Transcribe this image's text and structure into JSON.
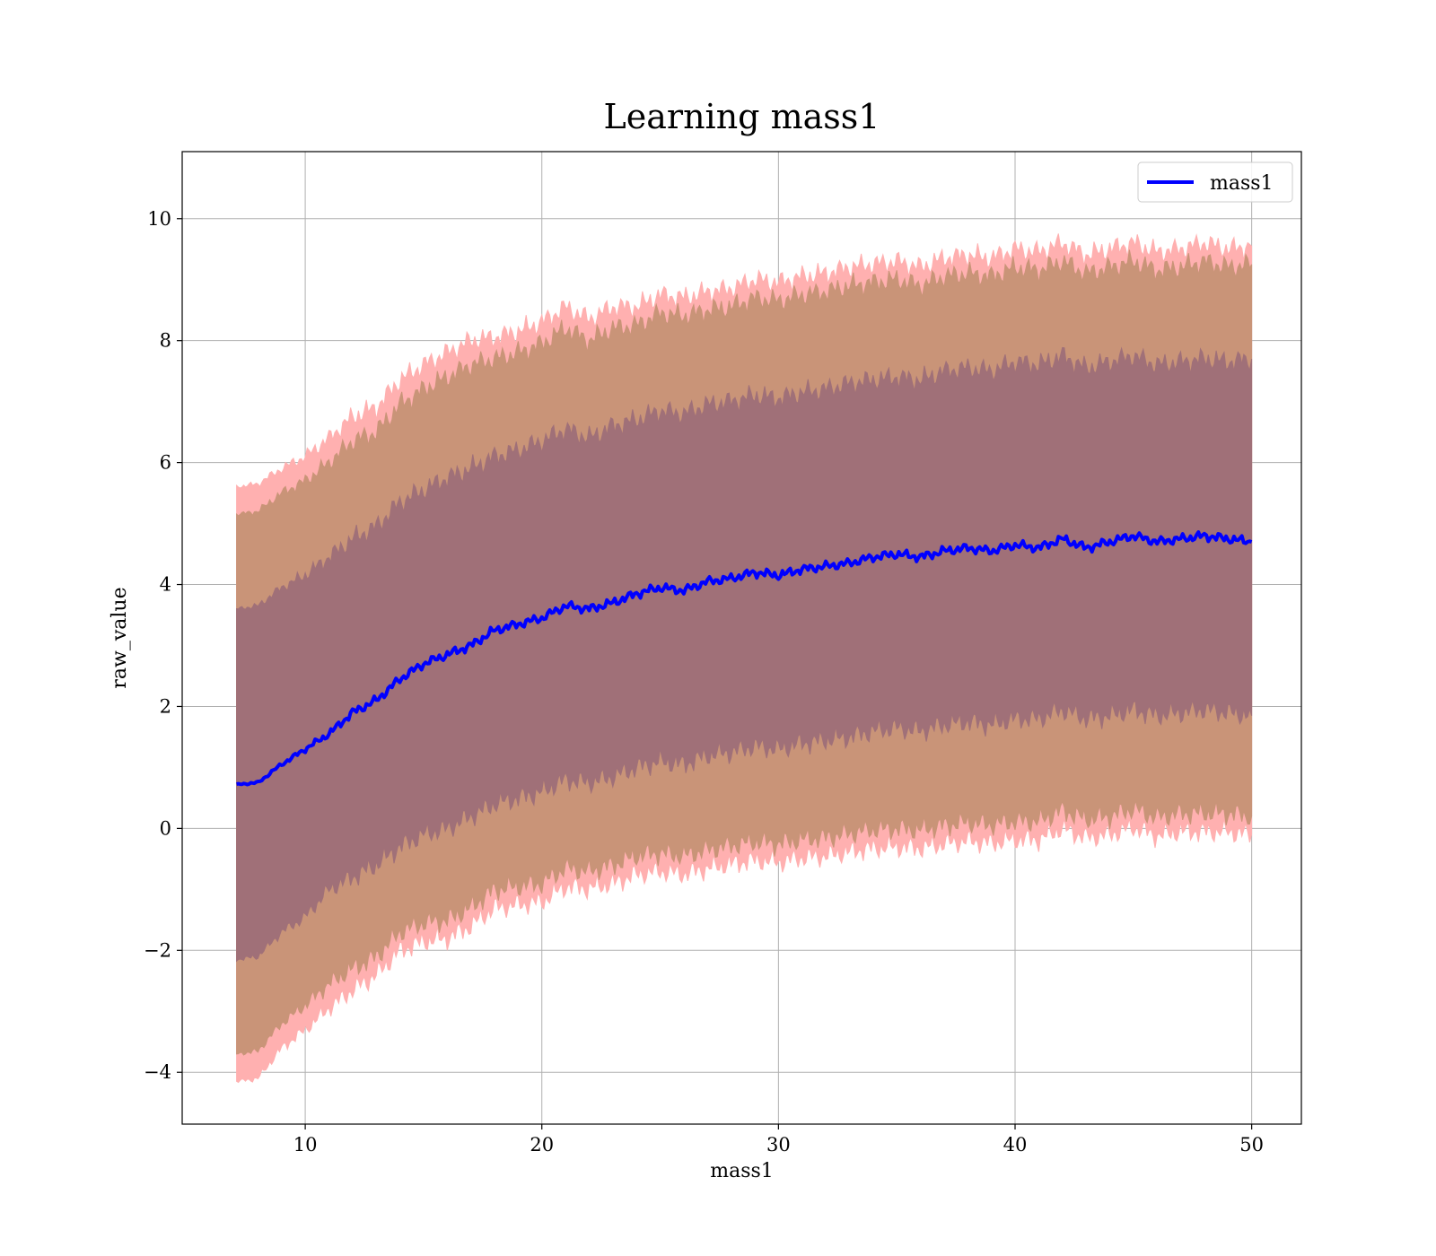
{
  "chart_data": {
    "type": "line",
    "title": "Learning mass1",
    "xlabel": "mass1",
    "ylabel": "raw_value",
    "xlim": [
      4.8,
      52.1
    ],
    "ylim": [
      -4.85,
      11.1
    ],
    "xticks": [
      10,
      20,
      30,
      40,
      50
    ],
    "xtick_labels": [
      "10",
      "20",
      "30",
      "40",
      "50"
    ],
    "yticks": [
      -4,
      -2,
      0,
      2,
      4,
      6,
      8,
      10
    ],
    "ytick_labels": [
      "−4",
      "−2",
      "0",
      "2",
      "4",
      "6",
      "8",
      "10"
    ],
    "grid": true,
    "legend": {
      "placement": "top-right",
      "entries": [
        "mass1"
      ]
    },
    "colors": {
      "line": "#0000ff",
      "band_outer": "#ffb0b0",
      "band_middle": "#c99478",
      "band_inner": "#a07078",
      "grid": "#b0b0b0"
    },
    "series": [
      {
        "name": "mass1",
        "x": [
          7.1,
          8,
          9,
          10,
          11,
          12,
          13,
          14,
          15,
          16,
          17,
          18,
          19,
          20,
          21,
          22,
          23,
          24,
          25,
          26,
          27,
          28,
          29,
          30,
          31,
          32,
          33,
          34,
          35,
          36,
          37,
          38,
          39,
          40,
          41,
          42,
          43,
          44,
          45,
          46,
          47,
          48,
          49,
          50
        ],
        "values": [
          0.72,
          0.75,
          1.05,
          1.3,
          1.55,
          1.9,
          2.1,
          2.45,
          2.7,
          2.85,
          3.0,
          3.25,
          3.35,
          3.45,
          3.65,
          3.6,
          3.7,
          3.85,
          3.95,
          3.9,
          4.05,
          4.1,
          4.2,
          4.15,
          4.25,
          4.3,
          4.35,
          4.45,
          4.5,
          4.45,
          4.55,
          4.6,
          4.55,
          4.65,
          4.6,
          4.75,
          4.6,
          4.7,
          4.8,
          4.7,
          4.75,
          4.8,
          4.75,
          4.7
        ]
      }
    ],
    "bands": [
      {
        "level": "outer",
        "lower": [
          -4.15,
          -4.1,
          -3.6,
          -3.3,
          -2.95,
          -2.65,
          -2.4,
          -2.0,
          -1.85,
          -1.8,
          -1.6,
          -1.3,
          -1.25,
          -1.2,
          -0.95,
          -0.98,
          -0.9,
          -0.75,
          -0.7,
          -0.75,
          -0.65,
          -0.58,
          -0.52,
          -0.55,
          -0.48,
          -0.45,
          -0.38,
          -0.32,
          -0.3,
          -0.32,
          -0.25,
          -0.2,
          -0.24,
          -0.18,
          -0.18,
          0.0,
          -0.15,
          -0.1,
          0.02,
          -0.12,
          -0.05,
          -0.05,
          -0.05,
          -0.1
        ],
        "upper": [
          5.6,
          5.65,
          5.9,
          6.1,
          6.4,
          6.75,
          6.9,
          7.35,
          7.6,
          7.8,
          8.0,
          8.05,
          8.15,
          8.3,
          8.55,
          8.35,
          8.55,
          8.55,
          8.75,
          8.7,
          8.8,
          8.85,
          9.0,
          8.95,
          9.05,
          9.1,
          9.2,
          9.25,
          9.3,
          9.2,
          9.35,
          9.4,
          9.35,
          9.5,
          9.45,
          9.6,
          9.4,
          9.5,
          9.6,
          9.45,
          9.5,
          9.6,
          9.5,
          9.55
        ]
      },
      {
        "level": "middle",
        "lower": [
          -3.7,
          -3.65,
          -3.2,
          -2.9,
          -2.55,
          -2.3,
          -2.1,
          -1.7,
          -1.55,
          -1.5,
          -1.3,
          -1.0,
          -0.95,
          -0.9,
          -0.65,
          -0.7,
          -0.6,
          -0.45,
          -0.4,
          -0.45,
          -0.35,
          -0.28,
          -0.22,
          -0.25,
          -0.18,
          -0.15,
          -0.08,
          -0.02,
          0.0,
          -0.02,
          0.05,
          0.1,
          0.06,
          0.12,
          0.12,
          0.3,
          0.15,
          0.2,
          0.32,
          0.18,
          0.25,
          0.25,
          0.25,
          0.2
        ],
        "upper": [
          5.15,
          5.2,
          5.5,
          5.7,
          6.0,
          6.35,
          6.5,
          6.95,
          7.2,
          7.4,
          7.6,
          7.7,
          7.8,
          7.95,
          8.2,
          8.0,
          8.2,
          8.25,
          8.45,
          8.4,
          8.5,
          8.55,
          8.7,
          8.65,
          8.75,
          8.8,
          8.9,
          8.95,
          9.0,
          8.9,
          9.05,
          9.1,
          9.05,
          9.2,
          9.15,
          9.3,
          9.1,
          9.2,
          9.3,
          9.15,
          9.2,
          9.3,
          9.2,
          9.25
        ]
      },
      {
        "level": "inner",
        "lower": [
          -2.15,
          -2.1,
          -1.7,
          -1.45,
          -1.0,
          -0.8,
          -0.6,
          -0.3,
          -0.1,
          0.0,
          0.2,
          0.4,
          0.5,
          0.6,
          0.8,
          0.75,
          0.85,
          1.0,
          1.1,
          1.05,
          1.2,
          1.25,
          1.35,
          1.3,
          1.4,
          1.45,
          1.5,
          1.6,
          1.65,
          1.6,
          1.7,
          1.75,
          1.7,
          1.8,
          1.8,
          1.95,
          1.8,
          1.85,
          1.95,
          1.85,
          1.9,
          1.95,
          1.9,
          1.85
        ],
        "upper": [
          3.6,
          3.65,
          3.95,
          4.15,
          4.45,
          4.75,
          4.95,
          5.35,
          5.55,
          5.75,
          5.9,
          6.1,
          6.2,
          6.35,
          6.55,
          6.4,
          6.6,
          6.7,
          6.85,
          6.8,
          6.95,
          7.0,
          7.1,
          7.05,
          7.15,
          7.2,
          7.3,
          7.35,
          7.4,
          7.35,
          7.5,
          7.55,
          7.5,
          7.65,
          7.6,
          7.75,
          7.55,
          7.65,
          7.75,
          7.6,
          7.65,
          7.7,
          7.65,
          7.7
        ]
      }
    ]
  }
}
